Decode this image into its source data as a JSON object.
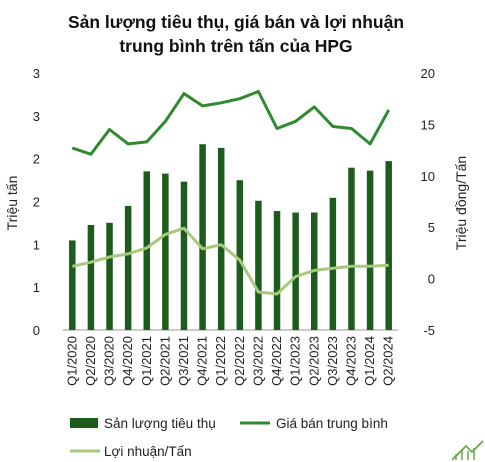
{
  "chart_data": {
    "type": "bar",
    "title_lines": [
      "Sản lượng tiêu thụ, giá bán và lợi nhuận",
      "trung bình trên tấn của HPG"
    ],
    "categories": [
      "Q1/2020",
      "Q2/2020",
      "Q3/2020",
      "Q4/2020",
      "Q1/2021",
      "Q2/2021",
      "Q3/2021",
      "Q4/2021",
      "Q1/2022",
      "Q2/2022",
      "Q3/2022",
      "Q4/2022",
      "Q1/2023",
      "Q2/2023",
      "Q3/2023",
      "Q4/2023",
      "Q1/2024",
      "Q2/2024"
    ],
    "y_left": {
      "label": "Triệu tấn",
      "ticks": [
        "0",
        "1",
        "1",
        "2",
        "2",
        "3",
        "3"
      ],
      "range": [
        0,
        3.5
      ]
    },
    "y_right": {
      "label": "Triệu đồng/Tấn",
      "ticks": [
        "-5",
        "0",
        "5",
        "10",
        "15",
        "20"
      ],
      "range": [
        -5,
        20
      ]
    },
    "series": [
      {
        "name": "Sản lượng tiêu thụ",
        "type": "bar",
        "axis": "left",
        "color": "#1e5c1e",
        "values": [
          1.22,
          1.43,
          1.46,
          1.69,
          2.16,
          2.13,
          2.02,
          2.53,
          2.48,
          2.04,
          1.76,
          1.62,
          1.6,
          1.6,
          1.8,
          2.21,
          2.17,
          2.3
        ]
      },
      {
        "name": "Giá bán trung bình",
        "type": "line",
        "axis": "right",
        "color": "#2f8a2f",
        "values": [
          12.7,
          12.1,
          14.5,
          13.1,
          13.3,
          15.3,
          18.0,
          16.8,
          17.1,
          17.5,
          18.2,
          14.6,
          15.3,
          16.7,
          14.8,
          14.6,
          13.1,
          16.4
        ]
      },
      {
        "name": "Lợi nhuận/Tấn",
        "type": "line",
        "axis": "right",
        "color": "#a6c97d",
        "values": [
          1.2,
          1.6,
          2.1,
          2.4,
          3.0,
          4.3,
          4.9,
          2.9,
          3.3,
          1.8,
          -1.3,
          -1.5,
          0.2,
          0.8,
          1.0,
          1.2,
          1.2,
          1.3
        ]
      }
    ],
    "legend": [
      {
        "label": "Sản lượng tiêu thụ",
        "kind": "bar",
        "color": "#1e5c1e"
      },
      {
        "label": "Giá bán trung bình",
        "kind": "line",
        "color": "#2f8a2f"
      },
      {
        "label": "Lợi nhuận/Tấn",
        "kind": "line",
        "color": "#a6c97d"
      }
    ]
  }
}
